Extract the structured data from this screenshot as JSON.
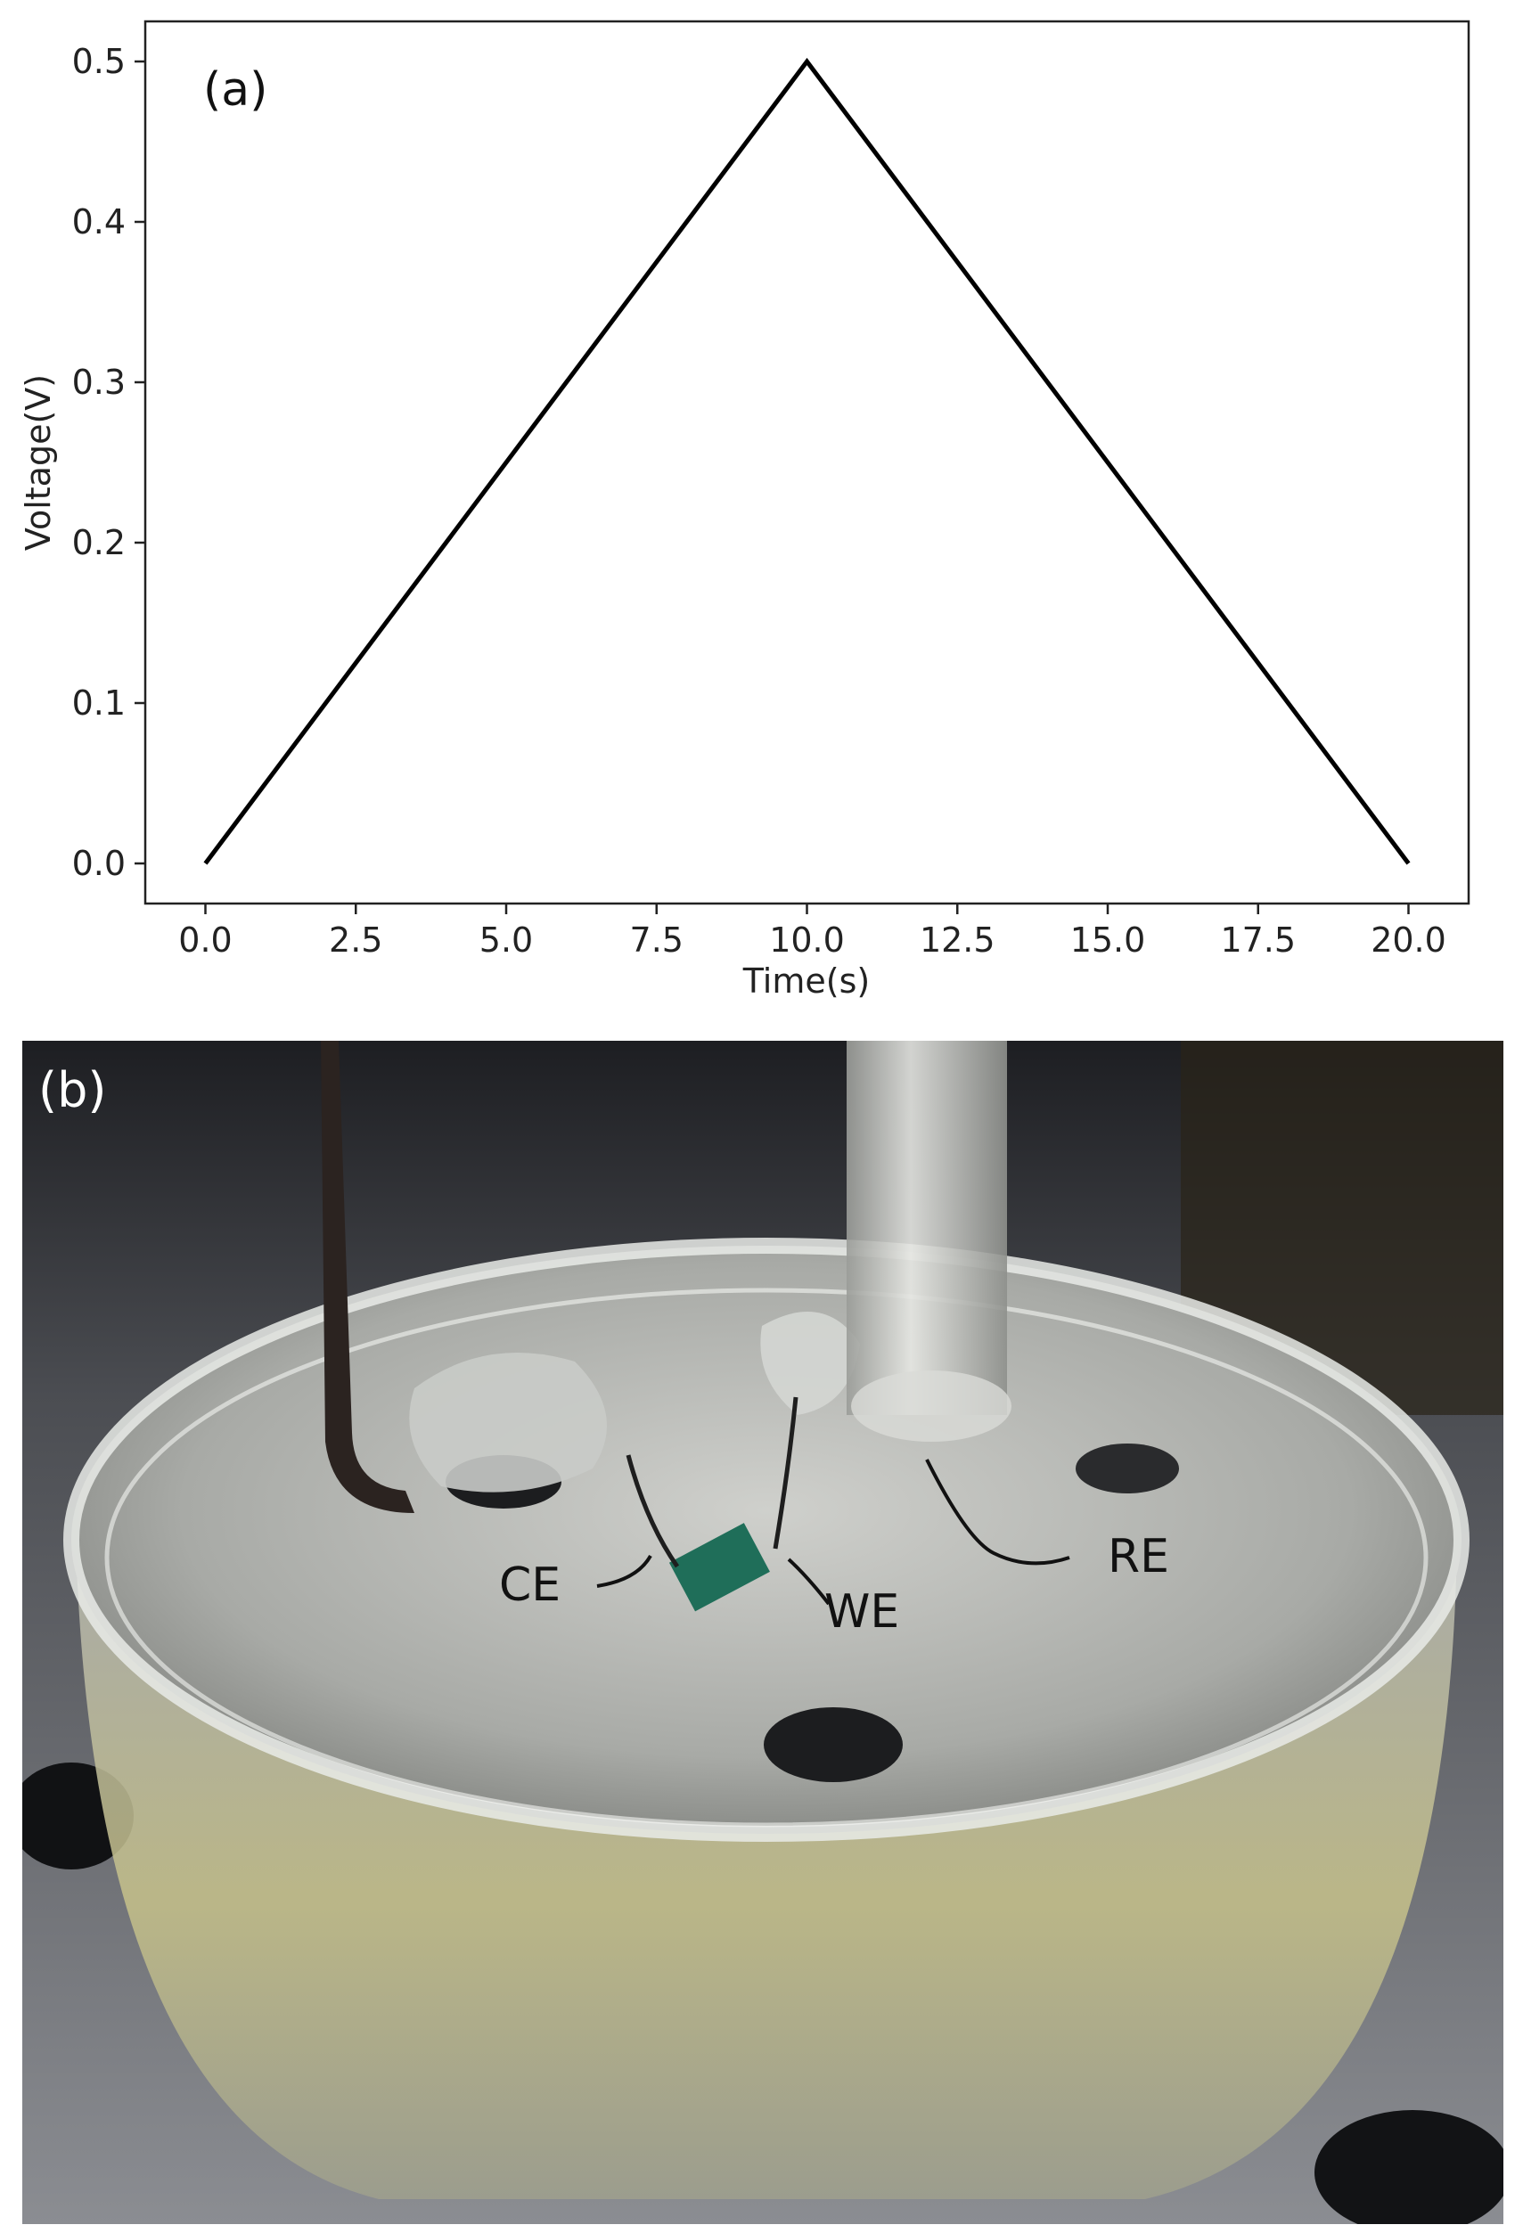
{
  "chart_data": {
    "type": "line",
    "panel_label": "(a)",
    "xlabel": "Time(s)",
    "ylabel": "Voltage(V)",
    "xlim": [
      -1.0,
      21.0
    ],
    "ylim": [
      -0.025,
      0.525
    ],
    "x_ticks": [
      0.0,
      2.5,
      5.0,
      7.5,
      10.0,
      12.5,
      15.0,
      17.5,
      20.0
    ],
    "x_tick_labels": [
      "0.0",
      "2.5",
      "5.0",
      "7.5",
      "10.0",
      "12.5",
      "15.0",
      "17.5",
      "20.0"
    ],
    "y_ticks": [
      0.0,
      0.1,
      0.2,
      0.3,
      0.4,
      0.5
    ],
    "y_tick_labels": [
      "0.0",
      "0.1",
      "0.2",
      "0.3",
      "0.4",
      "0.5"
    ],
    "grid": false,
    "series": [
      {
        "x": [
          0,
          10,
          20
        ],
        "y": [
          0.0,
          0.5,
          0.0
        ],
        "color": "#000000"
      }
    ]
  },
  "photo": {
    "panel_label": "(b)",
    "labels": {
      "ce": "CE",
      "we": "WE",
      "re": "RE"
    }
  }
}
